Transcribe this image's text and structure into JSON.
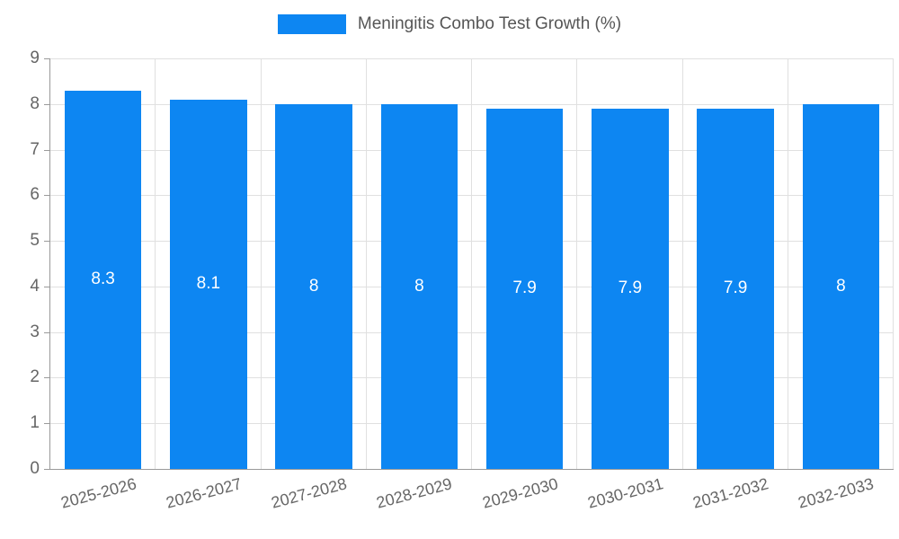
{
  "chart_data": {
    "type": "bar",
    "title": "Meningitis Combo Test Growth (%)",
    "categories": [
      "2025-2026",
      "2026-2027",
      "2027-2028",
      "2028-2029",
      "2029-2030",
      "2030-2031",
      "2031-2032",
      "2032-2033"
    ],
    "values": [
      8.3,
      8.1,
      8,
      8,
      7.9,
      7.9,
      7.9,
      8
    ],
    "bar_labels": [
      "8.3",
      "8.1",
      "8",
      "8",
      "7.9",
      "7.9",
      "7.9",
      "8"
    ],
    "xlabel": "",
    "ylabel": "",
    "ylim": [
      0,
      9
    ],
    "ytick_step": 1,
    "yticks": [
      "0",
      "1",
      "2",
      "3",
      "4",
      "5",
      "6",
      "7",
      "8",
      "9"
    ],
    "grid": true,
    "legend_position": "top",
    "colors": {
      "bar": "#0d86f2",
      "bar_label_text": "#ffffff",
      "axis_text": "#666666",
      "title_text": "#565656",
      "grid_line": "#e0e0e0",
      "axis_line": "#9a9a9a",
      "background": "#ffffff"
    }
  }
}
